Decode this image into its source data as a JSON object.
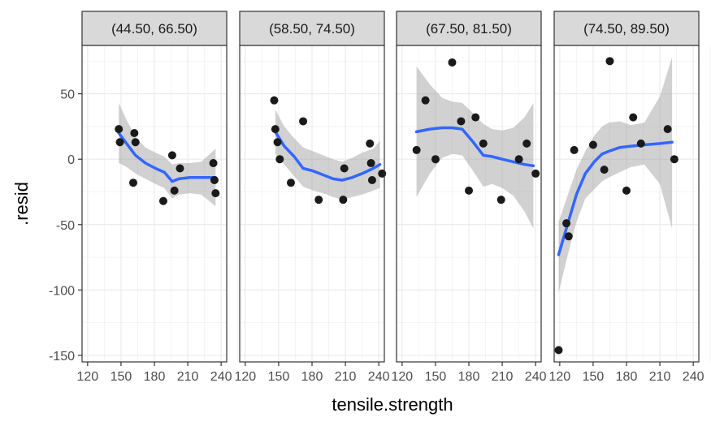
{
  "chart_data": {
    "type": "scatter",
    "xlabel": "tensile.strength",
    "ylabel": ".resid",
    "xlim": [
      115,
      245
    ],
    "ylim": [
      -155,
      87
    ],
    "x_ticks": [
      120,
      150,
      180,
      210,
      240
    ],
    "y_ticks": [
      -150,
      -100,
      -50,
      0,
      50
    ],
    "x_tick_labels": [
      "120",
      "150",
      "180",
      "210",
      "240"
    ],
    "y_tick_labels": [
      "-150",
      "-100",
      "-50",
      "0",
      "50"
    ],
    "grid": true,
    "colors": {
      "points": "#1a1a1a",
      "smooth": "#3366FF",
      "band": "#999999",
      "strip_bg": "#d9d9d9",
      "grid": "#ebebeb"
    },
    "panels": [
      {
        "label": "(44.50, 66.50)",
        "points": [
          [
            148,
            23
          ],
          [
            149,
            13
          ],
          [
            161,
            -18
          ],
          [
            162,
            20
          ],
          [
            163,
            13
          ],
          [
            188,
            -32
          ],
          [
            196,
            3
          ],
          [
            198,
            -24
          ],
          [
            203,
            -7
          ],
          [
            233,
            -3
          ],
          [
            234,
            -16
          ],
          [
            235,
            -26
          ]
        ],
        "smooth": [
          [
            148,
            20
          ],
          [
            155,
            12
          ],
          [
            163,
            3
          ],
          [
            172,
            -3
          ],
          [
            181,
            -7
          ],
          [
            189,
            -10
          ],
          [
            196,
            -17
          ],
          [
            202,
            -15
          ],
          [
            212,
            -14
          ],
          [
            222,
            -14
          ],
          [
            235,
            -14
          ]
        ],
        "band_upper": [
          [
            148,
            43
          ],
          [
            155,
            30
          ],
          [
            163,
            17
          ],
          [
            172,
            9
          ],
          [
            181,
            5
          ],
          [
            189,
            2
          ],
          [
            196,
            -4
          ],
          [
            202,
            -3
          ],
          [
            212,
            -3
          ],
          [
            222,
            -2
          ],
          [
            235,
            8
          ]
        ],
        "band_lower": [
          [
            148,
            -3
          ],
          [
            155,
            -6
          ],
          [
            163,
            -11
          ],
          [
            172,
            -15
          ],
          [
            181,
            -19
          ],
          [
            189,
            -22
          ],
          [
            196,
            -30
          ],
          [
            202,
            -27
          ],
          [
            212,
            -26
          ],
          [
            222,
            -27
          ],
          [
            235,
            -36
          ]
        ]
      },
      {
        "label": "(58.50, 74.50)",
        "points": [
          [
            146,
            45
          ],
          [
            147,
            23
          ],
          [
            149,
            13
          ],
          [
            151,
            0
          ],
          [
            161,
            -18
          ],
          [
            172,
            29
          ],
          [
            186,
            -31
          ],
          [
            208,
            -31
          ],
          [
            209,
            -7
          ],
          [
            232,
            12
          ],
          [
            233,
            -3
          ],
          [
            234,
            -16
          ],
          [
            243,
            -11
          ]
        ],
        "smooth": [
          [
            147,
            21
          ],
          [
            155,
            10
          ],
          [
            164,
            2
          ],
          [
            172,
            -7
          ],
          [
            181,
            -9
          ],
          [
            190,
            -12
          ],
          [
            199,
            -15
          ],
          [
            207,
            -16
          ],
          [
            216,
            -14
          ],
          [
            225,
            -11
          ],
          [
            235,
            -7
          ],
          [
            241,
            -4
          ]
        ],
        "band_upper": [
          [
            147,
            38
          ],
          [
            155,
            25
          ],
          [
            164,
            16
          ],
          [
            172,
            9
          ],
          [
            181,
            6
          ],
          [
            190,
            3
          ],
          [
            199,
            0
          ],
          [
            207,
            -2
          ],
          [
            216,
            1
          ],
          [
            225,
            5
          ],
          [
            235,
            8
          ],
          [
            241,
            14
          ]
        ],
        "band_lower": [
          [
            147,
            4
          ],
          [
            155,
            -4
          ],
          [
            164,
            -13
          ],
          [
            172,
            -21
          ],
          [
            181,
            -24
          ],
          [
            190,
            -26
          ],
          [
            199,
            -29
          ],
          [
            207,
            -31
          ],
          [
            216,
            -29
          ],
          [
            225,
            -27
          ],
          [
            235,
            -24
          ],
          [
            241,
            -22
          ]
        ]
      },
      {
        "label": "(67.50, 81.50)",
        "points": [
          [
            133,
            7
          ],
          [
            141,
            45
          ],
          [
            150,
            0
          ],
          [
            165,
            74
          ],
          [
            173,
            29
          ],
          [
            180,
            -24
          ],
          [
            186,
            32
          ],
          [
            193,
            12
          ],
          [
            209,
            -31
          ],
          [
            225,
            0
          ],
          [
            232,
            12
          ],
          [
            240,
            -11
          ]
        ],
        "smooth": [
          [
            133,
            21
          ],
          [
            145,
            23
          ],
          [
            156,
            24
          ],
          [
            165,
            24
          ],
          [
            174,
            23
          ],
          [
            183,
            14
          ],
          [
            193,
            3
          ],
          [
            201,
            2
          ],
          [
            210,
            0
          ],
          [
            220,
            -2
          ],
          [
            230,
            -4
          ],
          [
            238,
            -5
          ]
        ],
        "band_upper": [
          [
            133,
            71
          ],
          [
            145,
            57
          ],
          [
            156,
            47
          ],
          [
            165,
            44
          ],
          [
            174,
            43
          ],
          [
            183,
            36
          ],
          [
            193,
            27
          ],
          [
            201,
            23
          ],
          [
            210,
            22
          ],
          [
            220,
            24
          ],
          [
            230,
            32
          ],
          [
            238,
            43
          ]
        ],
        "band_lower": [
          [
            133,
            -29
          ],
          [
            145,
            -11
          ],
          [
            156,
            1
          ],
          [
            165,
            4
          ],
          [
            174,
            3
          ],
          [
            183,
            -8
          ],
          [
            193,
            -21
          ],
          [
            201,
            -19
          ],
          [
            210,
            -22
          ],
          [
            220,
            -28
          ],
          [
            230,
            -40
          ],
          [
            238,
            -53
          ]
        ]
      },
      {
        "label": "(74.50, 89.50)",
        "points": [
          [
            119,
            -146
          ],
          [
            126,
            -49
          ],
          [
            128,
            -59
          ],
          [
            133,
            7
          ],
          [
            150,
            11
          ],
          [
            160,
            -8
          ],
          [
            165,
            75
          ],
          [
            180,
            -24
          ],
          [
            186,
            32
          ],
          [
            193,
            12
          ],
          [
            217,
            23
          ],
          [
            223,
            0
          ]
        ],
        "smooth": [
          [
            119,
            -73
          ],
          [
            127,
            -50
          ],
          [
            135,
            -27
          ],
          [
            143,
            -11
          ],
          [
            151,
            -2
          ],
          [
            158,
            4
          ],
          [
            164,
            6
          ],
          [
            174,
            9
          ],
          [
            184,
            10
          ],
          [
            196,
            11
          ],
          [
            210,
            12
          ],
          [
            221,
            13
          ]
        ],
        "band_upper": [
          [
            119,
            -48
          ],
          [
            127,
            -28
          ],
          [
            135,
            -8
          ],
          [
            143,
            6
          ],
          [
            151,
            18
          ],
          [
            158,
            25
          ],
          [
            164,
            28
          ],
          [
            174,
            29
          ],
          [
            184,
            26
          ],
          [
            196,
            28
          ],
          [
            210,
            48
          ],
          [
            221,
            78
          ]
        ],
        "band_lower": [
          [
            119,
            -102
          ],
          [
            127,
            -74
          ],
          [
            135,
            -48
          ],
          [
            143,
            -30
          ],
          [
            151,
            -23
          ],
          [
            158,
            -17
          ],
          [
            164,
            -14
          ],
          [
            174,
            -10
          ],
          [
            184,
            -6
          ],
          [
            196,
            -4
          ],
          [
            210,
            -19
          ],
          [
            221,
            -53
          ]
        ]
      }
    ]
  }
}
